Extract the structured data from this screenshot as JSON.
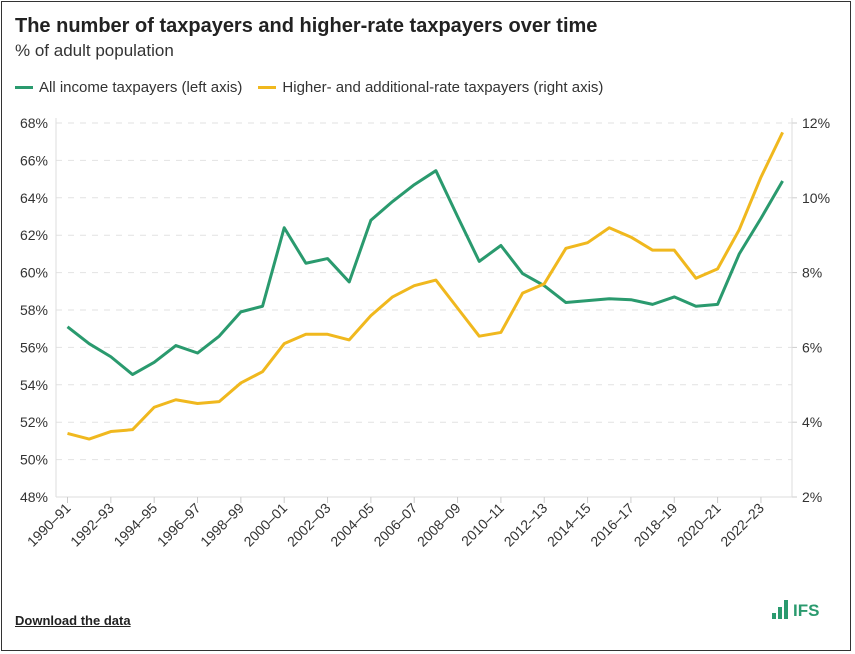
{
  "chart_data": {
    "type": "line",
    "title": "The number of taxpayers and higher-rate taxpayers over time",
    "subtitle": "% of adult population",
    "x": [
      "1990–91",
      "1991–92",
      "1992–93",
      "1993–94",
      "1994–95",
      "1995–96",
      "1996–97",
      "1997–98",
      "1998–99",
      "1999–00",
      "2000–01",
      "2001–02",
      "2002–03",
      "2003–04",
      "2004–05",
      "2005–06",
      "2006–07",
      "2007–08",
      "2008–09",
      "2009–10",
      "2010–11",
      "2011–12",
      "2012–13",
      "2013–14",
      "2014–15",
      "2015–16",
      "2016–17",
      "2017–18",
      "2018–19",
      "2019–20",
      "2020–21",
      "2021–22",
      "2022–23",
      "2023–24"
    ],
    "x_tick_labels": [
      "1990–91",
      "1992–93",
      "1994–95",
      "1996–97",
      "1998–99",
      "2000–01",
      "2002–03",
      "2004–05",
      "2006–07",
      "2008–09",
      "2010–11",
      "2012–13",
      "2014–15",
      "2016–17",
      "2018–19",
      "2020–21",
      "2022–23"
    ],
    "series": [
      {
        "name": "All income taxpayers (left axis)",
        "axis": "left",
        "color": "#2a9a6e",
        "values": [
          57.1,
          56.2,
          55.5,
          54.55,
          55.2,
          56.1,
          55.7,
          56.6,
          57.9,
          58.2,
          62.4,
          60.5,
          60.75,
          59.5,
          62.8,
          63.8,
          64.7,
          65.45,
          63.0,
          60.6,
          61.45,
          59.95,
          59.3,
          58.4,
          58.5,
          58.6,
          58.55,
          58.3,
          58.7,
          58.2,
          58.3,
          61.0,
          62.9,
          64.9
        ]
      },
      {
        "name": "Higher- and additional-rate taxpayers (right axis)",
        "axis": "right",
        "color": "#f0b81e",
        "values": [
          3.7,
          3.55,
          3.75,
          3.8,
          4.4,
          4.6,
          4.5,
          4.55,
          5.05,
          5.35,
          6.1,
          6.35,
          6.35,
          6.2,
          6.85,
          7.35,
          7.65,
          7.8,
          7.05,
          6.3,
          6.4,
          7.45,
          7.7,
          8.65,
          8.8,
          9.2,
          8.95,
          8.6,
          8.6,
          7.85,
          8.1,
          9.15,
          10.55,
          11.75
        ]
      }
    ],
    "y_left": {
      "ylim": [
        48,
        68
      ],
      "ticks": [
        "48%",
        "50%",
        "52%",
        "54%",
        "56%",
        "58%",
        "60%",
        "62%",
        "64%",
        "66%",
        "68%"
      ]
    },
    "y_right": {
      "ylim": [
        2,
        12
      ],
      "ticks": [
        "2%",
        "4%",
        "6%",
        "8%",
        "10%",
        "12%"
      ]
    },
    "grid": true,
    "legend_placement": "top-left"
  },
  "footer": {
    "download_label": "Download the data",
    "logo_text": "IFS"
  }
}
